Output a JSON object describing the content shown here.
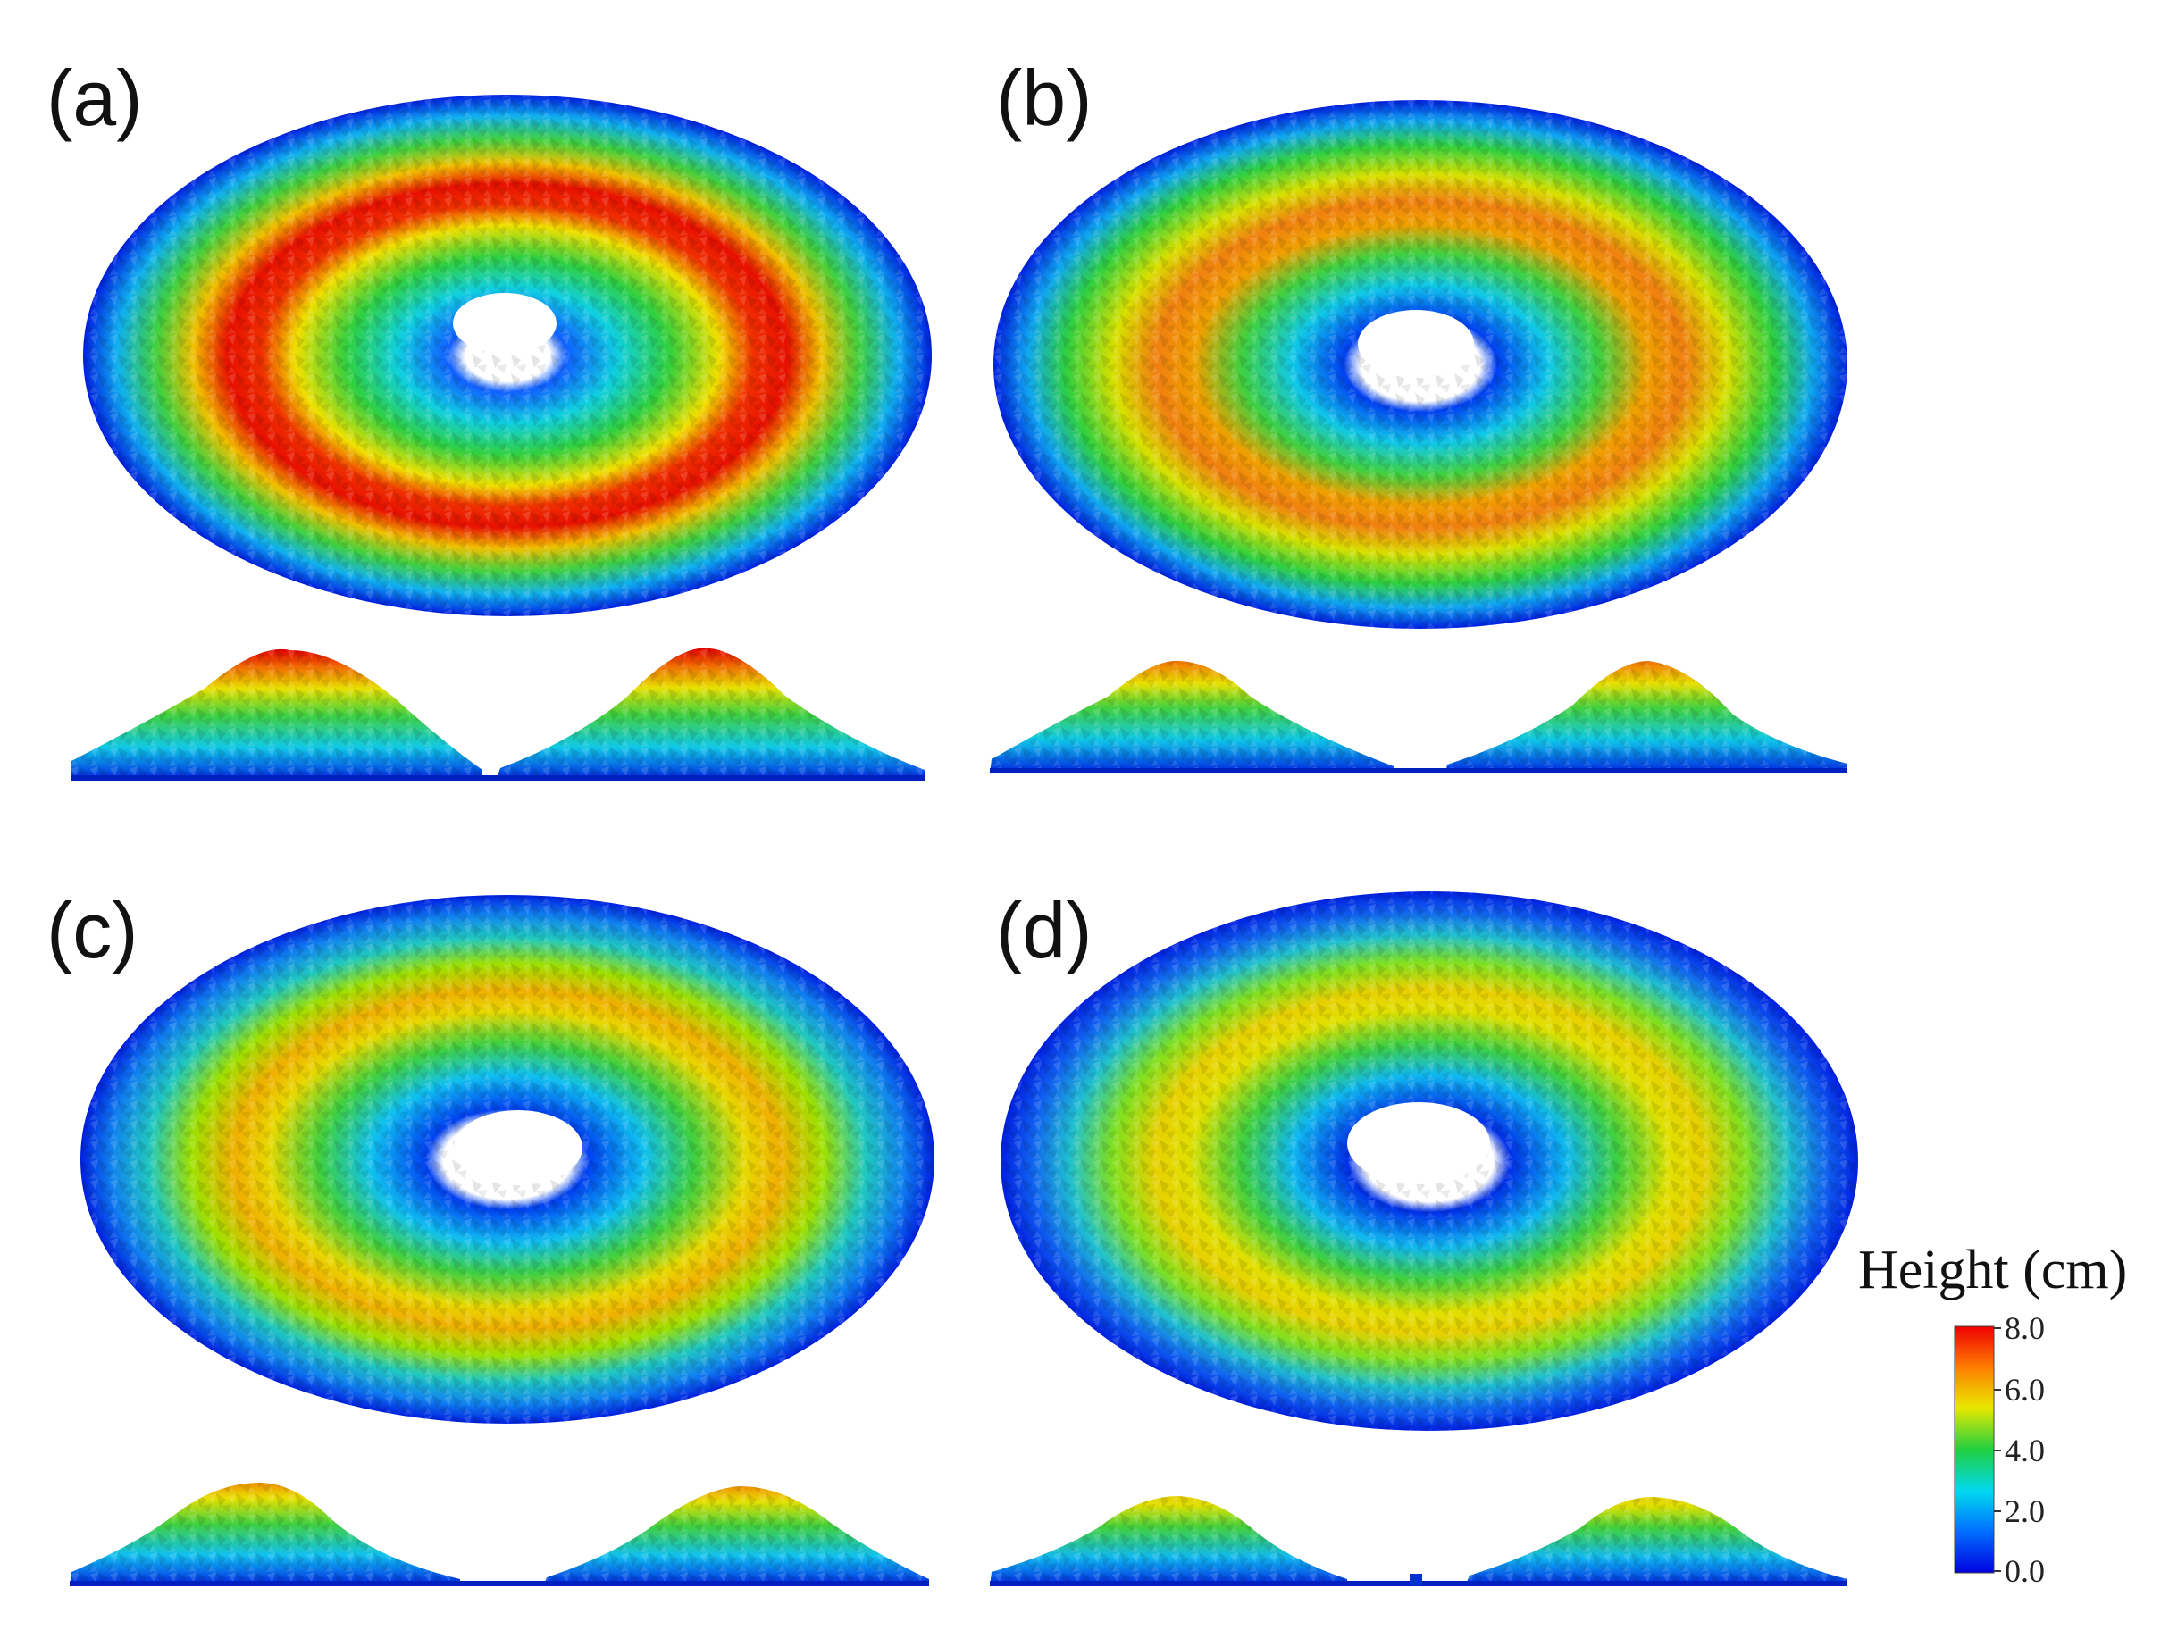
{
  "panels": [
    {
      "label": "(a)",
      "peak_height_cm": 8.0,
      "crater": "clear"
    },
    {
      "label": "(b)",
      "peak_height_cm": 6.5,
      "crater": "scattered"
    },
    {
      "label": "(c)",
      "peak_height_cm": 6.0,
      "crater": "scattered"
    },
    {
      "label": "(d)",
      "peak_height_cm": 5.0,
      "crater": "scattered"
    }
  ],
  "colorbar": {
    "title": "Height (cm)",
    "ticks": [
      "8.0",
      "6.0",
      "4.0",
      "2.0",
      "0.0"
    ],
    "min": 0.0,
    "max": 8.0,
    "colors": [
      "#0000e0",
      "#0070ff",
      "#00d8f0",
      "#20d040",
      "#e8e800",
      "#ff8000",
      "#ee0000"
    ]
  }
}
